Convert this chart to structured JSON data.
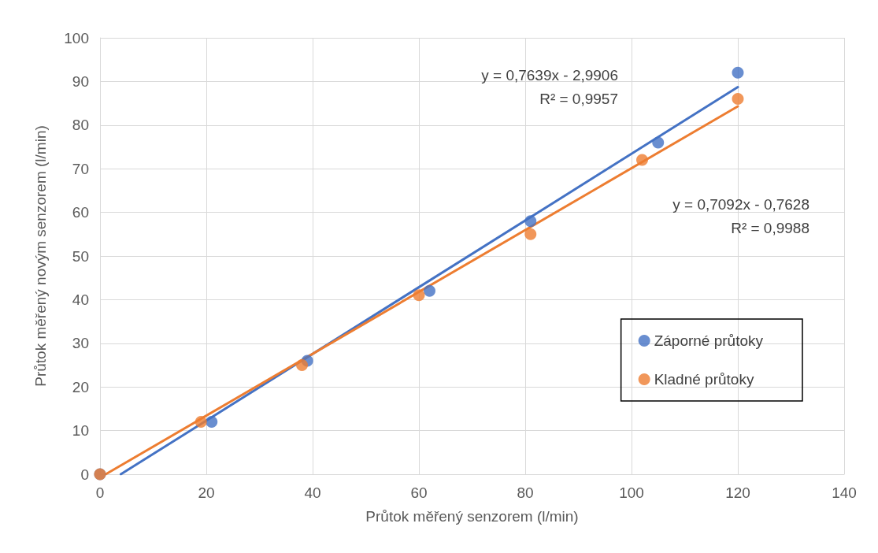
{
  "chart_data": {
    "type": "scatter",
    "xlabel": "Průtok měřený senzorem (l/min)",
    "ylabel": "Průtok měřený novým senzorem (l/min)",
    "xlim": [
      0,
      140
    ],
    "xticks": [
      0,
      20,
      40,
      60,
      80,
      100,
      120,
      140
    ],
    "ylim": [
      0,
      100
    ],
    "yticks": [
      0,
      10,
      20,
      30,
      40,
      50,
      60,
      70,
      80,
      90,
      100
    ],
    "grid": true,
    "legend": "right",
    "marker": "circle",
    "series": [
      {
        "name": "Záporné průtoky",
        "color": "#4472c4",
        "x": [
          0,
          21,
          39,
          62,
          81,
          105,
          120
        ],
        "values": [
          0,
          12,
          26,
          42,
          58,
          76,
          92
        ]
      },
      {
        "name": "Kladné průtoky",
        "color": "#ed7d31",
        "x": [
          0,
          19,
          38,
          60,
          81,
          102,
          120
        ],
        "values": [
          0,
          12,
          25,
          41,
          55,
          72,
          86
        ]
      },
      {
        "type": "line",
        "color": "#4472c4",
        "marker": "none",
        "x": [
          3.915,
          120
        ],
        "values": [
          0,
          88.7
        ]
      },
      {
        "type": "line",
        "color": "#ed7d31",
        "marker": "none",
        "x": [
          1.076,
          120
        ],
        "values": [
          0,
          84.3
        ]
      }
    ],
    "annotations": [
      "y = 0,7639x - 2,9906\nR² = 0,9957",
      "y = 0,7092x - 0,7628\nR² = 0,9988"
    ]
  }
}
